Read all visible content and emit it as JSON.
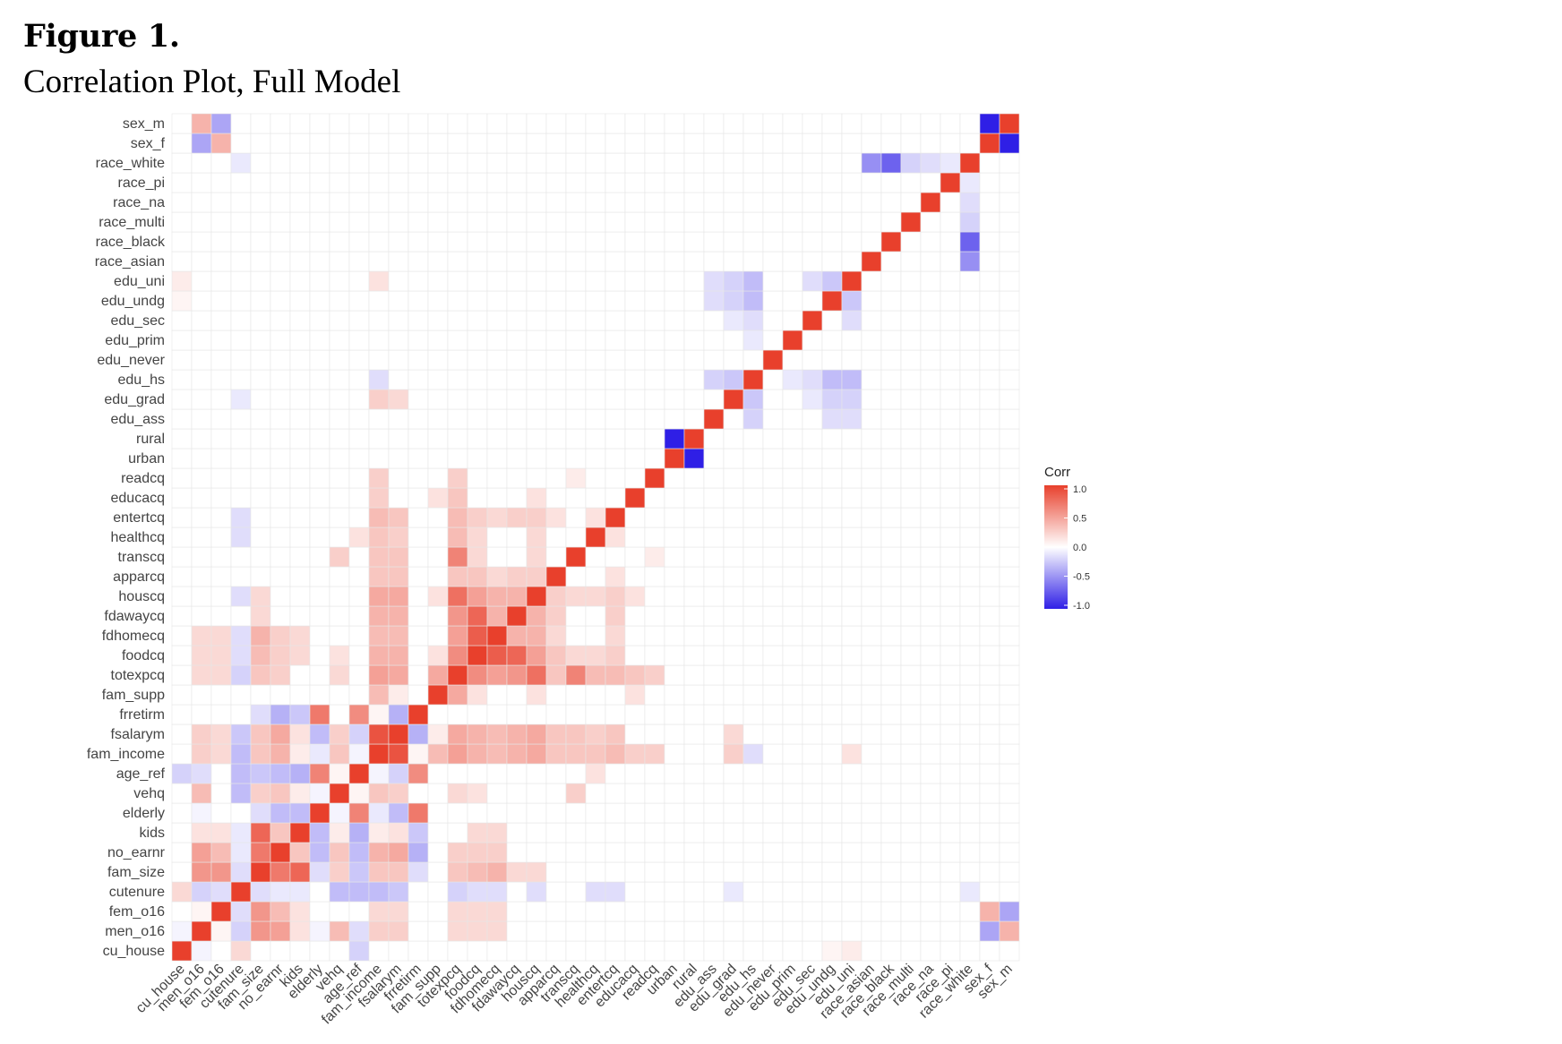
{
  "figure": {
    "label": "Figure 1.",
    "caption": "Correlation Plot, Full Model"
  },
  "chart_data": {
    "type": "heatmap",
    "variables": [
      "cu_house",
      "men_o16",
      "fem_o16",
      "cutenure",
      "fam_size",
      "no_earnr",
      "kids",
      "elderly",
      "vehq",
      "age_ref",
      "fam_income",
      "fsalarym",
      "frretirm",
      "fam_supp",
      "totexpcq",
      "foodcq",
      "fdhomecq",
      "fdawaycq",
      "houscq",
      "apparcq",
      "transcq",
      "healthcq",
      "entertcq",
      "educacq",
      "readcq",
      "urban",
      "rural",
      "edu_ass",
      "edu_grad",
      "edu_hs",
      "edu_never",
      "edu_prim",
      "edu_sec",
      "edu_undg",
      "edu_uni",
      "race_asian",
      "race_black",
      "race_multi",
      "race_na",
      "race_pi",
      "race_white",
      "sex_f",
      "sex_m"
    ],
    "x_order": "same as variables (left to right)",
    "y_order": "same as variables (bottom to top)",
    "color_scale": {
      "low": "#2f1fe6",
      "mid": "#ffffff",
      "high": "#e8402c",
      "limits": [
        -1,
        1
      ]
    },
    "legend": {
      "title": "Corr",
      "ticks": [
        "1.0",
        "0.5",
        "0.0",
        "-0.5",
        "-1.0"
      ],
      "placement": "right"
    },
    "correlations": [
      [
        "cu_house",
        "cu_house",
        1.0
      ],
      [
        "men_o16",
        "men_o16",
        1.0
      ],
      [
        "fem_o16",
        "fem_o16",
        1.0
      ],
      [
        "cutenure",
        "cutenure",
        1.0
      ],
      [
        "fam_size",
        "fam_size",
        1.0
      ],
      [
        "no_earnr",
        "no_earnr",
        1.0
      ],
      [
        "kids",
        "kids",
        1.0
      ],
      [
        "elderly",
        "elderly",
        1.0
      ],
      [
        "vehq",
        "vehq",
        1.0
      ],
      [
        "age_ref",
        "age_ref",
        1.0
      ],
      [
        "fam_income",
        "fam_income",
        1.0
      ],
      [
        "fsalarym",
        "fsalarym",
        1.0
      ],
      [
        "frretirm",
        "frretirm",
        1.0
      ],
      [
        "fam_supp",
        "fam_supp",
        1.0
      ],
      [
        "totexpcq",
        "totexpcq",
        1.0
      ],
      [
        "foodcq",
        "foodcq",
        1.0
      ],
      [
        "fdhomecq",
        "fdhomecq",
        1.0
      ],
      [
        "fdawaycq",
        "fdawaycq",
        1.0
      ],
      [
        "houscq",
        "houscq",
        1.0
      ],
      [
        "apparcq",
        "apparcq",
        1.0
      ],
      [
        "transcq",
        "transcq",
        1.0
      ],
      [
        "healthcq",
        "healthcq",
        1.0
      ],
      [
        "entertcq",
        "entertcq",
        1.0
      ],
      [
        "educacq",
        "educacq",
        1.0
      ],
      [
        "readcq",
        "readcq",
        1.0
      ],
      [
        "urban",
        "urban",
        1.0
      ],
      [
        "rural",
        "rural",
        1.0
      ],
      [
        "edu_ass",
        "edu_ass",
        1.0
      ],
      [
        "edu_grad",
        "edu_grad",
        1.0
      ],
      [
        "edu_hs",
        "edu_hs",
        1.0
      ],
      [
        "edu_never",
        "edu_never",
        1.0
      ],
      [
        "edu_prim",
        "edu_prim",
        1.0
      ],
      [
        "edu_sec",
        "edu_sec",
        1.0
      ],
      [
        "edu_undg",
        "edu_undg",
        1.0
      ],
      [
        "edu_uni",
        "edu_uni",
        1.0
      ],
      [
        "race_asian",
        "race_asian",
        1.0
      ],
      [
        "race_black",
        "race_black",
        1.0
      ],
      [
        "race_multi",
        "race_multi",
        1.0
      ],
      [
        "race_na",
        "race_na",
        1.0
      ],
      [
        "race_pi",
        "race_pi",
        1.0
      ],
      [
        "race_white",
        "race_white",
        1.0
      ],
      [
        "sex_f",
        "sex_f",
        1.0
      ],
      [
        "sex_m",
        "sex_m",
        1.0
      ],
      [
        "cu_house",
        "men_o16",
        -0.05
      ],
      [
        "cu_house",
        "cutenure",
        0.2
      ],
      [
        "cu_house",
        "age_ref",
        -0.2
      ],
      [
        "cu_house",
        "edu_uni",
        0.1
      ],
      [
        "cu_house",
        "edu_undg",
        0.05
      ],
      [
        "men_o16",
        "fem_o16",
        0.05
      ],
      [
        "men_o16",
        "fam_size",
        0.55
      ],
      [
        "men_o16",
        "no_earnr",
        0.5
      ],
      [
        "men_o16",
        "kids",
        0.15
      ],
      [
        "men_o16",
        "cutenure",
        -0.2
      ],
      [
        "men_o16",
        "elderly",
        -0.05
      ],
      [
        "men_o16",
        "vehq",
        0.35
      ],
      [
        "men_o16",
        "age_ref",
        -0.15
      ],
      [
        "men_o16",
        "fam_income",
        0.25
      ],
      [
        "men_o16",
        "fsalarym",
        0.25
      ],
      [
        "men_o16",
        "totexpcq",
        0.2
      ],
      [
        "men_o16",
        "foodcq",
        0.2
      ],
      [
        "men_o16",
        "fdhomecq",
        0.2
      ],
      [
        "men_o16",
        "sex_m",
        0.4
      ],
      [
        "men_o16",
        "sex_f",
        -0.4
      ],
      [
        "fem_o16",
        "fam_size",
        0.55
      ],
      [
        "fem_o16",
        "no_earnr",
        0.35
      ],
      [
        "fem_o16",
        "kids",
        0.15
      ],
      [
        "fem_o16",
        "cutenure",
        -0.15
      ],
      [
        "fem_o16",
        "fam_income",
        0.2
      ],
      [
        "fem_o16",
        "fsalarym",
        0.2
      ],
      [
        "fem_o16",
        "totexpcq",
        0.2
      ],
      [
        "fem_o16",
        "foodcq",
        0.2
      ],
      [
        "fem_o16",
        "fdhomecq",
        0.2
      ],
      [
        "fem_o16",
        "sex_f",
        0.4
      ],
      [
        "fem_o16",
        "sex_m",
        -0.4
      ],
      [
        "cutenure",
        "fam_size",
        -0.15
      ],
      [
        "cutenure",
        "no_earnr",
        -0.1
      ],
      [
        "cutenure",
        "kids",
        -0.1
      ],
      [
        "cutenure",
        "vehq",
        -0.3
      ],
      [
        "cutenure",
        "age_ref",
        -0.3
      ],
      [
        "cutenure",
        "fam_income",
        -0.3
      ],
      [
        "cutenure",
        "fsalarym",
        -0.25
      ],
      [
        "cutenure",
        "totexpcq",
        -0.2
      ],
      [
        "cutenure",
        "foodcq",
        -0.15
      ],
      [
        "cutenure",
        "fdhomecq",
        -0.15
      ],
      [
        "cutenure",
        "houscq",
        -0.15
      ],
      [
        "cutenure",
        "healthcq",
        -0.15
      ],
      [
        "cutenure",
        "entertcq",
        -0.15
      ],
      [
        "cutenure",
        "edu_grad",
        -0.1
      ],
      [
        "cutenure",
        "race_white",
        -0.1
      ],
      [
        "fam_size",
        "no_earnr",
        0.7
      ],
      [
        "fam_size",
        "kids",
        0.8
      ],
      [
        "fam_size",
        "elderly",
        -0.15
      ],
      [
        "fam_size",
        "vehq",
        0.25
      ],
      [
        "fam_size",
        "age_ref",
        -0.25
      ],
      [
        "fam_size",
        "fam_income",
        0.3
      ],
      [
        "fam_size",
        "fsalarym",
        0.3
      ],
      [
        "fam_size",
        "frretirm",
        -0.15
      ],
      [
        "fam_size",
        "totexpcq",
        0.3
      ],
      [
        "fam_size",
        "foodcq",
        0.35
      ],
      [
        "fam_size",
        "fdhomecq",
        0.4
      ],
      [
        "fam_size",
        "fdawaycq",
        0.2
      ],
      [
        "fam_size",
        "houscq",
        0.2
      ],
      [
        "no_earnr",
        "kids",
        0.3
      ],
      [
        "no_earnr",
        "elderly",
        -0.3
      ],
      [
        "no_earnr",
        "vehq",
        0.3
      ],
      [
        "no_earnr",
        "age_ref",
        -0.3
      ],
      [
        "no_earnr",
        "fam_income",
        0.4
      ],
      [
        "no_earnr",
        "fsalarym",
        0.45
      ],
      [
        "no_earnr",
        "frretirm",
        -0.35
      ],
      [
        "no_earnr",
        "totexpcq",
        0.25
      ],
      [
        "no_earnr",
        "foodcq",
        0.25
      ],
      [
        "no_earnr",
        "fdhomecq",
        0.25
      ],
      [
        "kids",
        "elderly",
        -0.3
      ],
      [
        "kids",
        "vehq",
        0.1
      ],
      [
        "kids",
        "age_ref",
        -0.35
      ],
      [
        "kids",
        "fam_income",
        0.1
      ],
      [
        "kids",
        "fsalarym",
        0.15
      ],
      [
        "kids",
        "frretirm",
        -0.25
      ],
      [
        "kids",
        "fdhomecq",
        0.2
      ],
      [
        "kids",
        "foodcq",
        0.2
      ],
      [
        "elderly",
        "vehq",
        -0.05
      ],
      [
        "elderly",
        "age_ref",
        0.65
      ],
      [
        "elderly",
        "fam_income",
        -0.1
      ],
      [
        "elderly",
        "fsalarym",
        -0.3
      ],
      [
        "elderly",
        "frretirm",
        0.7
      ],
      [
        "vehq",
        "age_ref",
        0.05
      ],
      [
        "vehq",
        "fam_income",
        0.3
      ],
      [
        "vehq",
        "fsalarym",
        0.25
      ],
      [
        "vehq",
        "totexpcq",
        0.2
      ],
      [
        "vehq",
        "transcq",
        0.25
      ],
      [
        "vehq",
        "foodcq",
        0.15
      ],
      [
        "age_ref",
        "fam_income",
        -0.05
      ],
      [
        "age_ref",
        "fsalarym",
        -0.2
      ],
      [
        "age_ref",
        "frretirm",
        0.6
      ],
      [
        "age_ref",
        "healthcq",
        0.15
      ],
      [
        "fam_income",
        "fsalarym",
        0.9
      ],
      [
        "fam_income",
        "frretirm",
        0.05
      ],
      [
        "fam_income",
        "fam_supp",
        0.35
      ],
      [
        "fam_income",
        "totexpcq",
        0.5
      ],
      [
        "fam_income",
        "foodcq",
        0.4
      ],
      [
        "fam_income",
        "fdhomecq",
        0.35
      ],
      [
        "fam_income",
        "fdawaycq",
        0.4
      ],
      [
        "fam_income",
        "houscq",
        0.45
      ],
      [
        "fam_income",
        "apparcq",
        0.3
      ],
      [
        "fam_income",
        "transcq",
        0.3
      ],
      [
        "fam_income",
        "healthcq",
        0.3
      ],
      [
        "fam_income",
        "entertcq",
        0.35
      ],
      [
        "fam_income",
        "educacq",
        0.25
      ],
      [
        "fam_income",
        "readcq",
        0.25
      ],
      [
        "fam_income",
        "edu_grad",
        0.25
      ],
      [
        "fam_income",
        "edu_hs",
        -0.15
      ],
      [
        "fam_income",
        "edu_uni",
        0.15
      ],
      [
        "fsalarym",
        "frretirm",
        -0.35
      ],
      [
        "fsalarym",
        "fam_supp",
        0.1
      ],
      [
        "fsalarym",
        "totexpcq",
        0.45
      ],
      [
        "fsalarym",
        "foodcq",
        0.4
      ],
      [
        "fsalarym",
        "fdhomecq",
        0.35
      ],
      [
        "fsalarym",
        "fdawaycq",
        0.4
      ],
      [
        "fsalarym",
        "houscq",
        0.45
      ],
      [
        "fsalarym",
        "apparcq",
        0.3
      ],
      [
        "fsalarym",
        "transcq",
        0.3
      ],
      [
        "fsalarym",
        "healthcq",
        0.25
      ],
      [
        "fsalarym",
        "entertcq",
        0.3
      ],
      [
        "fsalarym",
        "edu_grad",
        0.2
      ],
      [
        "fam_supp",
        "totexpcq",
        0.45
      ],
      [
        "fam_supp",
        "foodcq",
        0.15
      ],
      [
        "fam_supp",
        "houscq",
        0.15
      ],
      [
        "fam_supp",
        "educacq",
        0.15
      ],
      [
        "totexpcq",
        "foodcq",
        0.6
      ],
      [
        "totexpcq",
        "fdhomecq",
        0.5
      ],
      [
        "totexpcq",
        "fdawaycq",
        0.55
      ],
      [
        "totexpcq",
        "houscq",
        0.75
      ],
      [
        "totexpcq",
        "apparcq",
        0.3
      ],
      [
        "totexpcq",
        "transcq",
        0.65
      ],
      [
        "totexpcq",
        "healthcq",
        0.35
      ],
      [
        "totexpcq",
        "entertcq",
        0.35
      ],
      [
        "totexpcq",
        "educacq",
        0.3
      ],
      [
        "totexpcq",
        "readcq",
        0.25
      ],
      [
        "foodcq",
        "fdhomecq",
        0.85
      ],
      [
        "foodcq",
        "fdawaycq",
        0.8
      ],
      [
        "foodcq",
        "houscq",
        0.5
      ],
      [
        "foodcq",
        "apparcq",
        0.3
      ],
      [
        "foodcq",
        "transcq",
        0.2
      ],
      [
        "foodcq",
        "healthcq",
        0.2
      ],
      [
        "foodcq",
        "entertcq",
        0.25
      ],
      [
        "fdhomecq",
        "fdawaycq",
        0.4
      ],
      [
        "fdhomecq",
        "houscq",
        0.4
      ],
      [
        "fdhomecq",
        "apparcq",
        0.2
      ],
      [
        "fdhomecq",
        "entertcq",
        0.2
      ],
      [
        "fdawaycq",
        "houscq",
        0.4
      ],
      [
        "fdawaycq",
        "apparcq",
        0.25
      ],
      [
        "fdawaycq",
        "entertcq",
        0.25
      ],
      [
        "houscq",
        "apparcq",
        0.25
      ],
      [
        "houscq",
        "transcq",
        0.2
      ],
      [
        "houscq",
        "healthcq",
        0.2
      ],
      [
        "houscq",
        "entertcq",
        0.25
      ],
      [
        "houscq",
        "educacq",
        0.15
      ],
      [
        "apparcq",
        "entertcq",
        0.15
      ],
      [
        "transcq",
        "readcq",
        0.1
      ],
      [
        "healthcq",
        "entertcq",
        0.15
      ],
      [
        "urban",
        "rural",
        -1.0
      ],
      [
        "edu_ass",
        "edu_hs",
        -0.2
      ],
      [
        "edu_ass",
        "edu_uni",
        -0.15
      ],
      [
        "edu_ass",
        "edu_undg",
        -0.15
      ],
      [
        "edu_grad",
        "edu_hs",
        -0.25
      ],
      [
        "edu_grad",
        "edu_uni",
        -0.2
      ],
      [
        "edu_grad",
        "edu_undg",
        -0.2
      ],
      [
        "edu_grad",
        "edu_sec",
        -0.1
      ],
      [
        "edu_hs",
        "edu_uni",
        -0.3
      ],
      [
        "edu_hs",
        "edu_undg",
        -0.3
      ],
      [
        "edu_hs",
        "edu_sec",
        -0.15
      ],
      [
        "edu_hs",
        "edu_prim",
        -0.1
      ],
      [
        "edu_undg",
        "edu_uni",
        -0.25
      ],
      [
        "edu_sec",
        "edu_uni",
        -0.15
      ],
      [
        "race_asian",
        "race_white",
        -0.5
      ],
      [
        "race_black",
        "race_white",
        -0.7
      ],
      [
        "race_multi",
        "race_white",
        -0.2
      ],
      [
        "race_na",
        "race_white",
        -0.15
      ],
      [
        "race_pi",
        "race_white",
        -0.1
      ],
      [
        "sex_f",
        "sex_m",
        -1.0
      ]
    ]
  }
}
